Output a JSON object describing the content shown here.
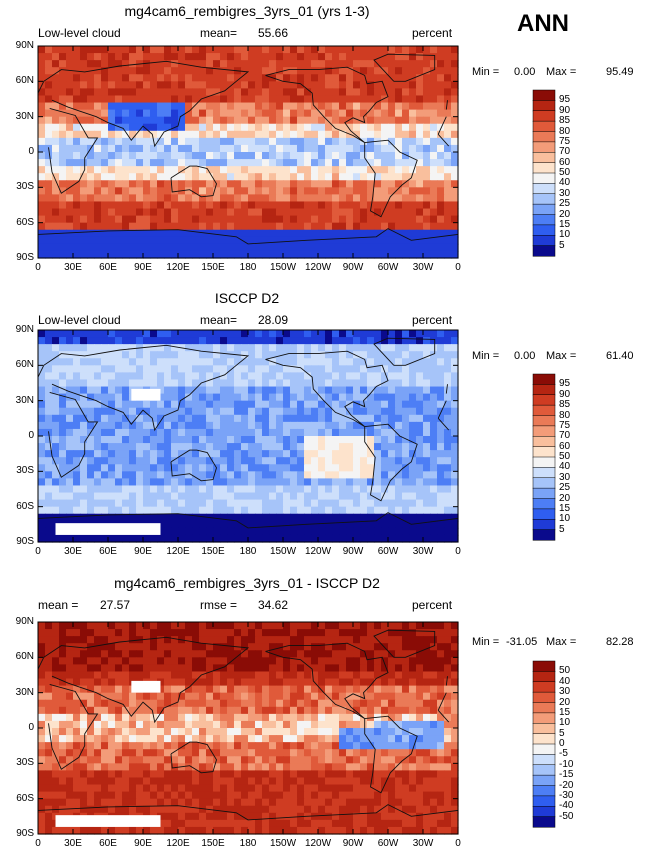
{
  "season": "ANN",
  "colors": {
    "abs_scale": [
      "#0a0a8c",
      "#1f3bd6",
      "#2f5ef0",
      "#4d7ef5",
      "#7aa3f7",
      "#a6c4f9",
      "#cddffb",
      "#f4f4f4",
      "#fde3cc",
      "#f9bf9d",
      "#f39c79",
      "#ea7a57",
      "#e05a3a",
      "#cf3c22",
      "#b52512",
      "#8a0c06"
    ],
    "diff_scale": [
      "#0a0a8c",
      "#1f3bd6",
      "#2f5ef0",
      "#4d7ef5",
      "#7aa3f7",
      "#a6c4f9",
      "#cddffb",
      "#f4f4f4",
      "#fde3cc",
      "#f9bf9d",
      "#f39c79",
      "#ea7a57",
      "#e05a3a",
      "#cf3c22",
      "#b52512",
      "#8a0c06"
    ],
    "land": "#111111",
    "missing": "#ffffff"
  },
  "panels": [
    {
      "id": "model",
      "title": "mg4cam6_rembigres_3yrs_01 (yrs 1-3)",
      "left_label": "Low-level cloud",
      "stat1_label": "mean=",
      "stat1_value": "55.66",
      "stat2_label": "",
      "stat2_value": "",
      "units": "percent",
      "min_label": "Min =",
      "min_value": "0.00",
      "max_label": "Max =",
      "max_value": "95.49",
      "cb_labels": [
        "95",
        "90",
        "85",
        "80",
        "75",
        "70",
        "60",
        "50",
        "40",
        "30",
        "25",
        "20",
        "15",
        "10",
        "5"
      ]
    },
    {
      "id": "obs",
      "title": "ISCCP D2",
      "left_label": "Low-level cloud",
      "stat1_label": "mean=",
      "stat1_value": "28.09",
      "stat2_label": "",
      "stat2_value": "",
      "units": "percent",
      "min_label": "Min =",
      "min_value": "0.00",
      "max_label": "Max =",
      "max_value": "61.40",
      "cb_labels": [
        "95",
        "90",
        "85",
        "80",
        "75",
        "70",
        "60",
        "50",
        "40",
        "30",
        "25",
        "20",
        "15",
        "10",
        "5"
      ]
    },
    {
      "id": "diff",
      "title": "mg4cam6_rembigres_3yrs_01 - ISCCP D2",
      "left_label": "",
      "stat1_label": "mean =",
      "stat1_value": "27.57",
      "stat2_label": "rmse =",
      "stat2_value": "34.62",
      "units": "percent",
      "min_label": "Min =",
      "min_value": "-31.05",
      "max_label": "Max =",
      "max_value": "82.28",
      "cb_labels": [
        "50",
        "40",
        "30",
        "20",
        "15",
        "10",
        "5",
        "0",
        "-5",
        "-10",
        "-15",
        "-20",
        "-30",
        "-40",
        "-50"
      ]
    }
  ],
  "lat_labels": [
    "90N",
    "60N",
    "30N",
    "0",
    "30S",
    "60S",
    "90S"
  ],
  "lon_labels": [
    "0",
    "30E",
    "60E",
    "90E",
    "120E",
    "150E",
    "180",
    "150W",
    "120W",
    "90W",
    "60W",
    "30W",
    "0"
  ]
}
